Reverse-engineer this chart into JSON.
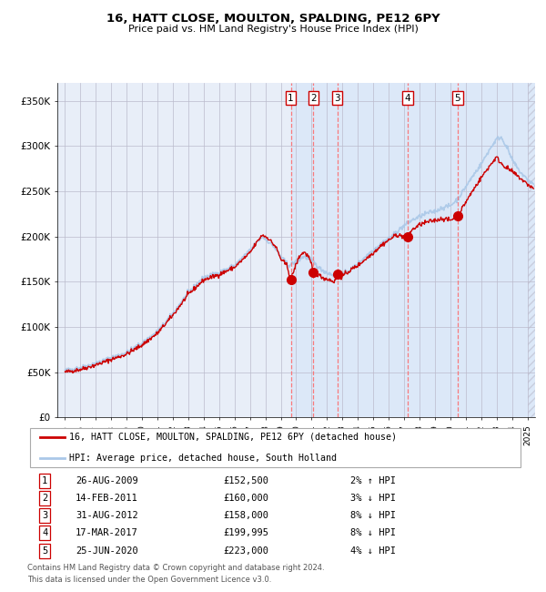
{
  "title": "16, HATT CLOSE, MOULTON, SPALDING, PE12 6PY",
  "subtitle": "Price paid vs. HM Land Registry's House Price Index (HPI)",
  "legend_line1": "16, HATT CLOSE, MOULTON, SPALDING, PE12 6PY (detached house)",
  "legend_line2": "HPI: Average price, detached house, South Holland",
  "footer1": "Contains HM Land Registry data © Crown copyright and database right 2024.",
  "footer2": "This data is licensed under the Open Government Licence v3.0.",
  "transactions": [
    {
      "num": 1,
      "date": "26-AUG-2009",
      "price": 152500,
      "pct": "2%",
      "dir": "↑"
    },
    {
      "num": 2,
      "date": "14-FEB-2011",
      "price": 160000,
      "pct": "3%",
      "dir": "↓"
    },
    {
      "num": 3,
      "date": "31-AUG-2012",
      "price": 158000,
      "pct": "8%",
      "dir": "↓"
    },
    {
      "num": 4,
      "date": "17-MAR-2017",
      "price": 199995,
      "pct": "8%",
      "dir": "↓"
    },
    {
      "num": 5,
      "date": "25-JUN-2020",
      "price": 223000,
      "pct": "4%",
      "dir": "↓"
    }
  ],
  "transaction_dates_decimal": [
    2009.65,
    2011.12,
    2012.66,
    2017.21,
    2020.48
  ],
  "dot_coords": [
    [
      2009.65,
      152500
    ],
    [
      2011.12,
      160000
    ],
    [
      2012.66,
      158000
    ],
    [
      2017.21,
      199995
    ],
    [
      2020.48,
      223000
    ]
  ],
  "ylim": [
    0,
    370000
  ],
  "xlim_start": 1994.5,
  "xlim_end": 2025.5,
  "shaded_start": 2009.65,
  "background_color": "#ffffff",
  "plot_bg_unshaded": "#e8eef8",
  "plot_bg_shaded": "#dce8f8",
  "grid_color": "#bbbbcc",
  "hpi_line_color": "#aac8e8",
  "price_line_color": "#cc0000",
  "vline_color": "#ff6666",
  "dot_color": "#cc0000",
  "hatch_area_start": 2025.0
}
